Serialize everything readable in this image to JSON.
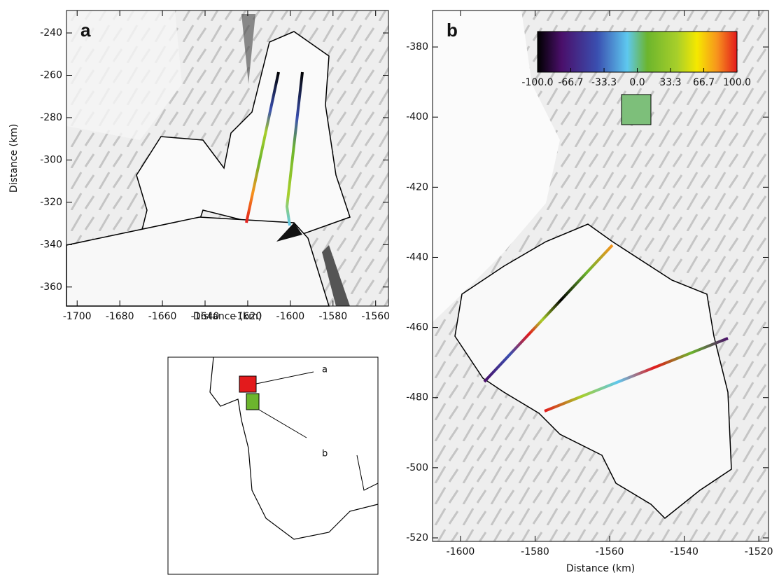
{
  "panels": [
    {
      "label": "a",
      "xlabel": "Distance (km)",
      "ylabel": "Distance (km)",
      "xlim": [
        -1705,
        -1554
      ],
      "ylim": [
        -369,
        -229.4
      ],
      "xticks": [
        -1700,
        -1680,
        -1660,
        -1640,
        -1620,
        -1600,
        -1580,
        -1560
      ],
      "yticks": [
        -240,
        -260,
        -280,
        -300,
        -320,
        -340,
        -360
      ]
    },
    {
      "label": "b",
      "xlabel": "Distance (km)",
      "xlim": [
        -1607.5,
        -1517.4
      ],
      "ylim": [
        -521,
        -369.6
      ],
      "xticks": [
        -1600,
        -1580,
        -1560,
        -1540,
        -1520
      ],
      "yticks": [
        -380,
        -400,
        -420,
        -440,
        -460,
        -480,
        -500,
        -520
      ]
    }
  ],
  "colorbar": {
    "lim": [
      -100,
      100
    ],
    "ticks": [
      {
        "value": -100,
        "label": "-100.0"
      },
      {
        "value": -66.7,
        "label": "-66.7"
      },
      {
        "value": -33.3,
        "label": "-33.3"
      },
      {
        "value": 0,
        "label": "0.0"
      },
      {
        "value": 33.3,
        "label": "33.3"
      },
      {
        "value": 66.7,
        "label": "66.7"
      },
      {
        "value": 100,
        "label": "100.0"
      }
    ]
  },
  "inset": {
    "labels": [
      "a",
      "b"
    ]
  }
}
